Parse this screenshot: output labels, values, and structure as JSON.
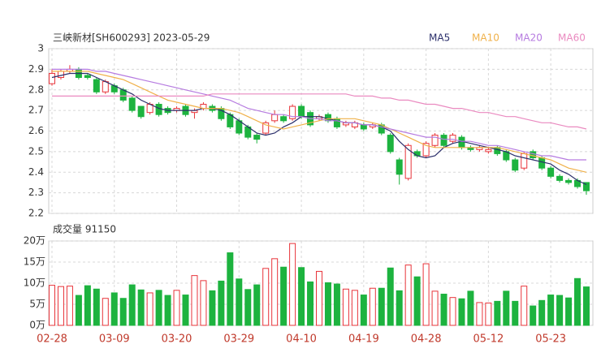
{
  "chart_data": {
    "type": "candlestick",
    "title": "三峡新材[SH600293] 2023-05-29",
    "volume_title": "成交量 91150",
    "categories": [
      "02-28",
      null,
      null,
      null,
      null,
      null,
      null,
      "03-09",
      null,
      null,
      null,
      null,
      null,
      null,
      "03-20",
      null,
      null,
      null,
      null,
      null,
      null,
      "03-29",
      null,
      null,
      null,
      null,
      null,
      null,
      "04-10",
      null,
      null,
      null,
      null,
      null,
      null,
      "04-19",
      null,
      null,
      null,
      null,
      null,
      null,
      "04-28",
      null,
      null,
      null,
      null,
      null,
      null,
      "05-12",
      null,
      null,
      null,
      null,
      null,
      null,
      "05-23",
      null,
      null,
      null,
      null
    ],
    "open": [
      2.83,
      2.86,
      2.89,
      2.9,
      2.87,
      2.85,
      2.79,
      2.82,
      2.8,
      2.76,
      2.72,
      2.69,
      2.73,
      2.71,
      2.7,
      2.72,
      2.69,
      2.71,
      2.72,
      2.71,
      2.68,
      2.65,
      2.62,
      2.58,
      2.59,
      2.65,
      2.67,
      2.66,
      2.72,
      2.69,
      2.66,
      2.68,
      2.66,
      2.63,
      2.62,
      2.63,
      2.62,
      2.63,
      2.58,
      2.46,
      2.37,
      2.5,
      2.48,
      2.53,
      2.58,
      2.55,
      2.57,
      2.52,
      2.51,
      2.5,
      2.52,
      2.5,
      2.46,
      2.42,
      2.5,
      2.47,
      2.42,
      2.38,
      2.36,
      2.36,
      2.35
    ],
    "high": [
      2.9,
      2.9,
      2.92,
      2.91,
      2.88,
      2.86,
      2.85,
      2.83,
      2.81,
      2.77,
      2.72,
      2.74,
      2.74,
      2.72,
      2.72,
      2.73,
      2.71,
      2.74,
      2.73,
      2.72,
      2.69,
      2.66,
      2.63,
      2.59,
      2.65,
      2.7,
      2.68,
      2.73,
      2.73,
      2.7,
      2.68,
      2.69,
      2.67,
      2.65,
      2.65,
      2.64,
      2.64,
      2.64,
      2.59,
      2.47,
      2.54,
      2.51,
      2.55,
      2.59,
      2.59,
      2.59,
      2.58,
      2.53,
      2.53,
      2.52,
      2.53,
      2.51,
      2.47,
      2.5,
      2.51,
      2.48,
      2.43,
      2.39,
      2.37,
      2.37,
      2.35
    ],
    "low": [
      2.82,
      2.85,
      2.88,
      2.85,
      2.85,
      2.78,
      2.78,
      2.78,
      2.74,
      2.69,
      2.66,
      2.68,
      2.67,
      2.68,
      2.69,
      2.67,
      2.66,
      2.7,
      2.69,
      2.65,
      2.61,
      2.58,
      2.56,
      2.54,
      2.58,
      2.64,
      2.64,
      2.65,
      2.66,
      2.62,
      2.65,
      2.64,
      2.61,
      2.62,
      2.61,
      2.6,
      2.61,
      2.58,
      2.49,
      2.34,
      2.36,
      2.47,
      2.47,
      2.52,
      2.52,
      2.54,
      2.51,
      2.5,
      2.5,
      2.49,
      2.48,
      2.45,
      2.4,
      2.41,
      2.46,
      2.41,
      2.37,
      2.35,
      2.34,
      2.32,
      2.29
    ],
    "close": [
      2.88,
      2.89,
      2.9,
      2.86,
      2.86,
      2.79,
      2.84,
      2.79,
      2.75,
      2.7,
      2.67,
      2.73,
      2.68,
      2.69,
      2.71,
      2.68,
      2.7,
      2.73,
      2.7,
      2.66,
      2.62,
      2.59,
      2.57,
      2.56,
      2.64,
      2.68,
      2.65,
      2.72,
      2.67,
      2.63,
      2.67,
      2.65,
      2.62,
      2.64,
      2.64,
      2.61,
      2.63,
      2.59,
      2.5,
      2.39,
      2.53,
      2.48,
      2.54,
      2.58,
      2.53,
      2.58,
      2.52,
      2.51,
      2.52,
      2.51,
      2.49,
      2.46,
      2.41,
      2.49,
      2.47,
      2.42,
      2.38,
      2.36,
      2.35,
      2.33,
      2.31
    ],
    "volume": [
      9.5,
      9.2,
      9.3,
      7.1,
      9.4,
      8.6,
      6.4,
      7.7,
      6.4,
      9.6,
      8.4,
      7.7,
      8.3,
      7.1,
      8.3,
      7.2,
      11.8,
      10.6,
      8.2,
      10.5,
      17.2,
      11.0,
      8.5,
      9.6,
      13.5,
      15.8,
      13.8,
      19.4,
      13.7,
      10.3,
      12.8,
      10.1,
      9.8,
      8.6,
      8.3,
      7.2,
      8.8,
      8.8,
      13.6,
      8.2,
      14.3,
      11.5,
      14.6,
      8.1,
      7.4,
      6.6,
      6.3,
      8.1,
      5.4,
      5.3,
      5.7,
      8.1,
      5.7,
      9.3,
      4.6,
      5.9,
      7.2,
      7.1,
      6.5,
      11.1,
      9.115
    ],
    "series": [
      {
        "name": "MA5",
        "color": "#2b2f6b",
        "values": [
          2.86,
          2.87,
          2.88,
          2.88,
          2.88,
          2.86,
          2.84,
          2.82,
          2.8,
          2.78,
          2.75,
          2.73,
          2.71,
          2.7,
          2.7,
          2.7,
          2.7,
          2.71,
          2.71,
          2.7,
          2.68,
          2.65,
          2.62,
          2.59,
          2.58,
          2.59,
          2.62,
          2.64,
          2.67,
          2.67,
          2.67,
          2.66,
          2.65,
          2.64,
          2.64,
          2.63,
          2.63,
          2.62,
          2.6,
          2.55,
          2.51,
          2.48,
          2.47,
          2.48,
          2.52,
          2.54,
          2.55,
          2.54,
          2.53,
          2.52,
          2.51,
          2.5,
          2.48,
          2.47,
          2.46,
          2.45,
          2.44,
          2.41,
          2.39,
          2.36,
          2.34
        ]
      },
      {
        "name": "MA10",
        "color": "#f0b14a",
        "values": [
          2.89,
          2.89,
          2.89,
          2.89,
          2.89,
          2.88,
          2.87,
          2.86,
          2.85,
          2.83,
          2.81,
          2.79,
          2.77,
          2.75,
          2.74,
          2.73,
          2.72,
          2.71,
          2.71,
          2.71,
          2.7,
          2.69,
          2.67,
          2.65,
          2.63,
          2.62,
          2.61,
          2.62,
          2.63,
          2.64,
          2.65,
          2.66,
          2.66,
          2.66,
          2.66,
          2.65,
          2.64,
          2.63,
          2.61,
          2.59,
          2.57,
          2.55,
          2.53,
          2.52,
          2.52,
          2.52,
          2.52,
          2.52,
          2.52,
          2.52,
          2.52,
          2.51,
          2.5,
          2.49,
          2.48,
          2.47,
          2.46,
          2.44,
          2.42,
          2.41,
          2.4
        ]
      },
      {
        "name": "MA20",
        "color": "#b67be0",
        "values": [
          2.9,
          2.9,
          2.9,
          2.9,
          2.9,
          2.89,
          2.89,
          2.88,
          2.87,
          2.86,
          2.85,
          2.84,
          2.83,
          2.82,
          2.81,
          2.8,
          2.79,
          2.78,
          2.77,
          2.76,
          2.75,
          2.73,
          2.71,
          2.7,
          2.69,
          2.68,
          2.68,
          2.67,
          2.67,
          2.66,
          2.66,
          2.65,
          2.65,
          2.64,
          2.64,
          2.63,
          2.63,
          2.62,
          2.61,
          2.6,
          2.59,
          2.58,
          2.57,
          2.57,
          2.56,
          2.56,
          2.55,
          2.55,
          2.54,
          2.53,
          2.53,
          2.52,
          2.51,
          2.5,
          2.49,
          2.48,
          2.48,
          2.47,
          2.46,
          2.46,
          2.46
        ]
      },
      {
        "name": "MA60",
        "color": "#ea8ac0",
        "values": [
          2.77,
          2.77,
          2.77,
          2.77,
          2.77,
          2.77,
          2.77,
          2.77,
          2.77,
          2.77,
          2.77,
          2.77,
          2.77,
          2.77,
          2.77,
          2.77,
          2.77,
          2.77,
          2.78,
          2.78,
          2.78,
          2.78,
          2.78,
          2.78,
          2.78,
          2.78,
          2.78,
          2.78,
          2.78,
          2.78,
          2.78,
          2.78,
          2.78,
          2.78,
          2.77,
          2.77,
          2.77,
          2.76,
          2.76,
          2.75,
          2.75,
          2.74,
          2.73,
          2.73,
          2.72,
          2.71,
          2.71,
          2.7,
          2.69,
          2.69,
          2.68,
          2.67,
          2.67,
          2.66,
          2.65,
          2.64,
          2.64,
          2.63,
          2.62,
          2.62,
          2.61
        ]
      }
    ],
    "up_color": "#e8343a",
    "down_color": "#1db33f",
    "ylim": [
      2.2,
      3
    ],
    "yticks": [
      2.2,
      2.3,
      2.4,
      2.5,
      2.6,
      2.7,
      2.8,
      2.9,
      3
    ],
    "vlim": [
      0,
      20
    ],
    "vticks": [
      {
        "value": 0,
        "label": "0万"
      },
      {
        "value": 5,
        "label": "5万"
      },
      {
        "value": 10,
        "label": "10万"
      },
      {
        "value": 15,
        "label": "15万"
      },
      {
        "value": 20,
        "label": "20万"
      }
    ],
    "grid": true
  }
}
